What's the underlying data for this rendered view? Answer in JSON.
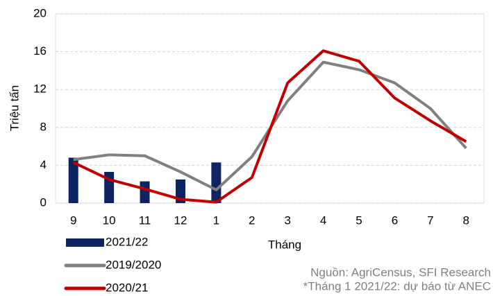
{
  "chart_data": {
    "type": "bar",
    "ylabel": "Triệu tấn",
    "xlabel": "Tháng",
    "categories": [
      "9",
      "10",
      "11",
      "12",
      "1",
      "2",
      "3",
      "4",
      "5",
      "6",
      "7",
      "8"
    ],
    "series": [
      {
        "name": "2021/22",
        "type": "bar",
        "color": "#0d2463",
        "values": [
          4.8,
          3.3,
          2.3,
          2.5,
          4.3,
          null,
          null,
          null,
          null,
          null,
          null,
          null
        ]
      },
      {
        "name": "2019/2020",
        "type": "line",
        "color": "#808080",
        "values": [
          4.6,
          5.1,
          5.0,
          3.3,
          1.4,
          4.9,
          10.8,
          14.9,
          14.1,
          12.7,
          10.0,
          5.8
        ]
      },
      {
        "name": "2020/21",
        "type": "line",
        "color": "#c00000",
        "values": [
          4.3,
          2.5,
          1.5,
          0.4,
          0.1,
          2.7,
          12.7,
          16.1,
          15.0,
          11.1,
          8.7,
          6.5
        ]
      }
    ],
    "ylim": [
      0,
      20
    ],
    "yticks": [
      0,
      4,
      8,
      12,
      16,
      20
    ],
    "grid": true,
    "annotations": [
      "Nguồn: AgriCensus, SFI Research",
      "*Tháng 1 2021/22: dự báo từ ANEC"
    ]
  }
}
